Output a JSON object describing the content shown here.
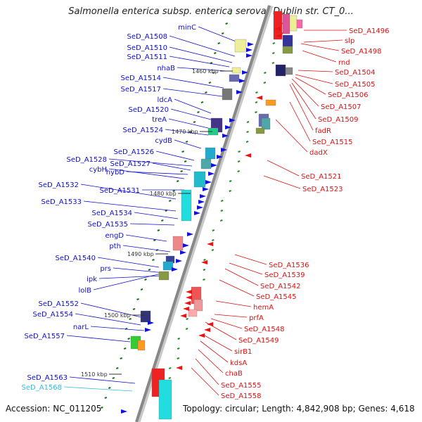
{
  "title": "Salmonella enterica subsp. enterica serovar Dublin str. CT_0...",
  "footer": {
    "accession": "Accession: NC_011205",
    "topology": "Topology: circular; Length: 4,842,908 bp; Genes: 4,618"
  },
  "colors": {
    "left_labels": "#1010cc",
    "right_labels": "#dd1010",
    "highlight_label": "#33bbdd",
    "backbone": "#888888"
  },
  "left_labels": [
    {
      "text": "minC"
    },
    {
      "text": "SeD_A1508"
    },
    {
      "text": "SeD_A1510"
    },
    {
      "text": "SeD_A1511"
    },
    {
      "text": "nhaB"
    },
    {
      "text": "SeD_A1514"
    },
    {
      "text": "SeD_A1517"
    },
    {
      "text": "ldcA"
    },
    {
      "text": "SeD_A1520"
    },
    {
      "text": "treA"
    },
    {
      "text": "SeD_A1524"
    },
    {
      "text": "cydB"
    },
    {
      "text": "SeD_A1526"
    },
    {
      "text": "SeD_A1528"
    },
    {
      "text": "SeD_A1527"
    },
    {
      "text": "cybH"
    },
    {
      "text": "hybD"
    },
    {
      "text": "SeD_A1532"
    },
    {
      "text": "SeD_A1531"
    },
    {
      "text": "SeD_A1533"
    },
    {
      "text": "SeD_A1534"
    },
    {
      "text": "SeD_A1535"
    },
    {
      "text": "engD"
    },
    {
      "text": "pth"
    },
    {
      "text": "SeD_A1540"
    },
    {
      "text": "prs"
    },
    {
      "text": "ipk"
    },
    {
      "text": "lolB"
    },
    {
      "text": "SeD_A1552"
    },
    {
      "text": "SeD_A1554"
    },
    {
      "text": "narL"
    },
    {
      "text": "SeD_A1557"
    },
    {
      "text": "SeD_A1563"
    },
    {
      "text": "SeD_A1568"
    }
  ],
  "right_labels": [
    {
      "text": "SeD_A1496"
    },
    {
      "text": "slp"
    },
    {
      "text": "SeD_A1498"
    },
    {
      "text": "rnd"
    },
    {
      "text": "SeD_A1504"
    },
    {
      "text": "SeD_A1505"
    },
    {
      "text": "SeD_A1506"
    },
    {
      "text": "SeD_A1507"
    },
    {
      "text": "SeD_A1509"
    },
    {
      "text": "fadR"
    },
    {
      "text": "SeD_A1515"
    },
    {
      "text": "dadX"
    },
    {
      "text": "SeD_A1521"
    },
    {
      "text": "SeD_A1523"
    },
    {
      "text": "SeD_A1536"
    },
    {
      "text": "SeD_A1539"
    },
    {
      "text": "SeD_A1542"
    },
    {
      "text": "SeD_A1545"
    },
    {
      "text": "hemA"
    },
    {
      "text": "prfA"
    },
    {
      "text": "SeD_A1548"
    },
    {
      "text": "SeD_A1549"
    },
    {
      "text": "sirB1"
    },
    {
      "text": "kdsA"
    },
    {
      "text": "chaB"
    },
    {
      "text": "SeD_A1555"
    },
    {
      "text": "SeD_A1558"
    }
  ],
  "ticks": [
    {
      "text": "1460 kbp"
    },
    {
      "text": "1470 kbp"
    },
    {
      "text": "1480 kbp"
    },
    {
      "text": "1490 kbp"
    },
    {
      "text": "1500 kbp"
    },
    {
      "text": "1510 kbp"
    }
  ]
}
